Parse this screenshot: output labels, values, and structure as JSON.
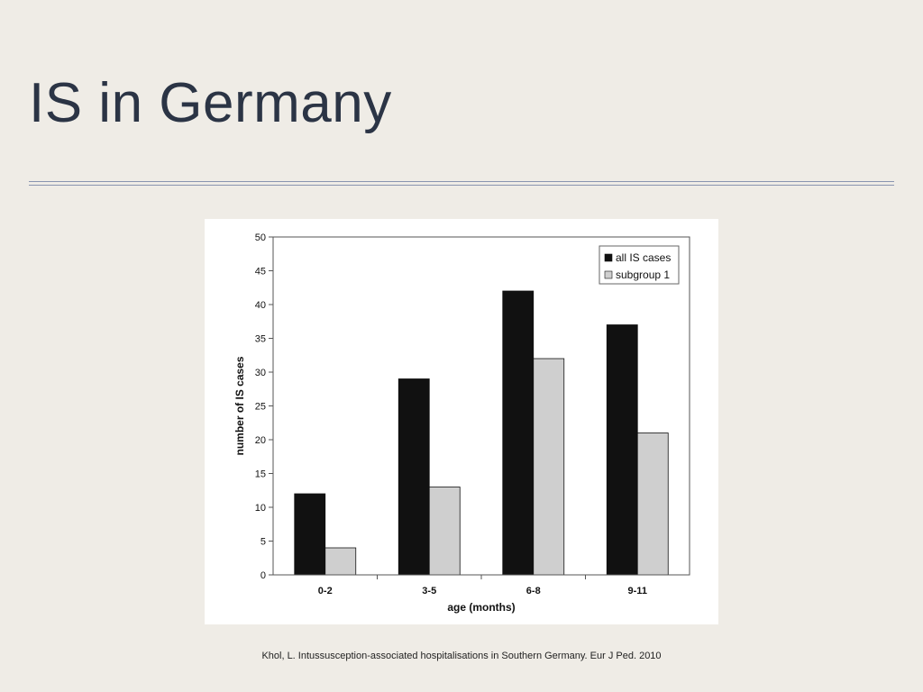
{
  "slide": {
    "title": "IS in Germany",
    "citation": "Khol, L. Intussusception-associated hospitalisations in Southern Germany. Eur J Ped. 2010"
  },
  "chart_data": {
    "type": "bar",
    "categories": [
      "0-2",
      "3-5",
      "6-8",
      "9-11"
    ],
    "series": [
      {
        "name": "all IS cases",
        "values": [
          12,
          29,
          42,
          37
        ],
        "color": "#111111"
      },
      {
        "name": "subgroup 1",
        "values": [
          4,
          13,
          32,
          21
        ],
        "color": "#cfcfcf"
      }
    ],
    "title": "",
    "xlabel": "age (months)",
    "ylabel": "number of IS cases",
    "ylim": [
      0,
      50
    ],
    "yticks": [
      0,
      5,
      10,
      15,
      20,
      25,
      30,
      35,
      40,
      45,
      50
    ],
    "grid": false,
    "legend": "top-right"
  }
}
